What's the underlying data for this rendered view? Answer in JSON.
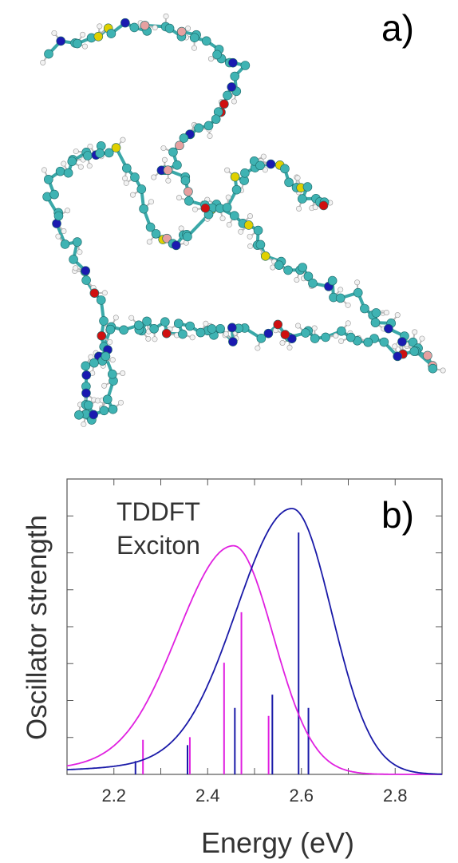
{
  "panel_a": {
    "label": "a)"
  },
  "panel_b": {
    "label": "b)"
  },
  "colors": {
    "carbon": "#3fb3b3",
    "hydrogen": "#f2f2f2",
    "nitrogen": "#1a1ab0",
    "oxygen": "#d01010",
    "sulfur": "#e0d000",
    "fluorine": "#e6a0a0",
    "tddft": "#e020e0",
    "exciton": "#1a1aa8"
  },
  "chart_data": {
    "type": "line",
    "xlabel": "Energy (eV)",
    "ylabel": "Oscillator strength",
    "xlim": [
      2.1,
      2.9
    ],
    "ylim": [
      0,
      1.0
    ],
    "xticks": [
      "2.2",
      "2.4",
      "2.6",
      "2.8"
    ],
    "ytick_count": 7,
    "legend_position": "top-left",
    "series": [
      {
        "name": "TDDFT",
        "color": "#e020e0",
        "peak_center": 2.455,
        "peak_height": 0.86,
        "sticks": [
          {
            "x": 2.262,
            "y": 0.13
          },
          {
            "x": 2.362,
            "y": 0.14
          },
          {
            "x": 2.435,
            "y": 0.42
          },
          {
            "x": 2.472,
            "y": 0.61
          },
          {
            "x": 2.53,
            "y": 0.22
          }
        ]
      },
      {
        "name": "Exciton",
        "color": "#1a1aa8",
        "peak_center": 2.58,
        "peak_height": 1.0,
        "sticks": [
          {
            "x": 2.246,
            "y": 0.05
          },
          {
            "x": 2.357,
            "y": 0.11
          },
          {
            "x": 2.458,
            "y": 0.25
          },
          {
            "x": 2.538,
            "y": 0.3
          },
          {
            "x": 2.594,
            "y": 0.91
          },
          {
            "x": 2.615,
            "y": 0.25
          }
        ]
      }
    ]
  }
}
